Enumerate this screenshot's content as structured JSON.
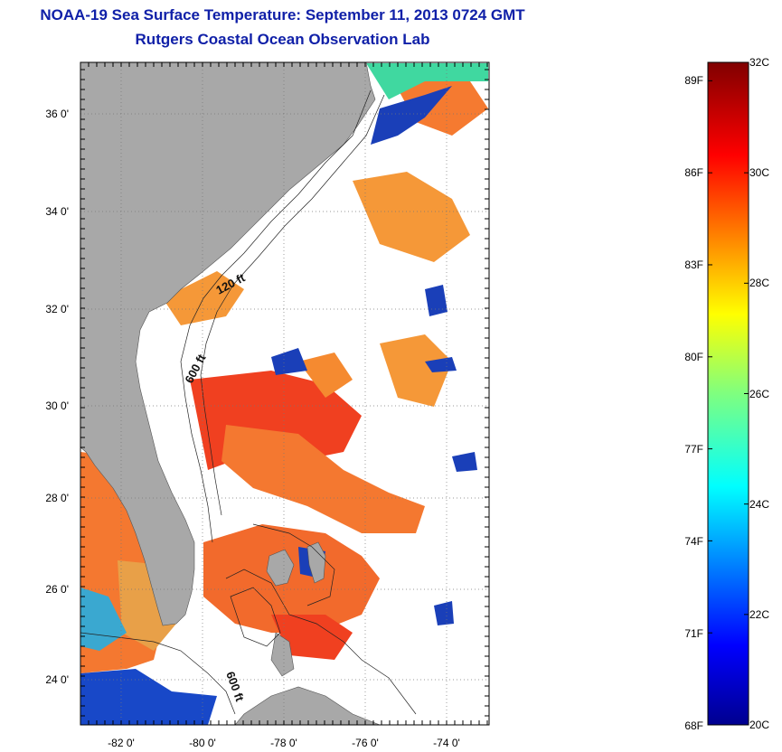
{
  "title": {
    "line1": "NOAA-19 Sea Surface Temperature:  September 11, 2013 0724 GMT",
    "line2": "Rutgers Coastal Ocean Observation Lab"
  },
  "map": {
    "lat_labels": [
      "36 0'",
      "34 0'",
      "32 0'",
      "30 0'",
      "28 0'",
      "26 0'",
      "24 0'"
    ],
    "lat_values": [
      36,
      34,
      32,
      30,
      28,
      26,
      24
    ],
    "lon_labels": [
      "-82 0'",
      "-80 0'",
      "-78 0'",
      "-76 0'",
      "-74 0'"
    ],
    "lon_values": [
      -82,
      -80,
      -78,
      -76,
      -74
    ],
    "lat_range": [
      23,
      37.1
    ],
    "lon_range": [
      -83,
      -72.9
    ],
    "contour_labels": [
      "120 ft",
      "600 ft",
      "600 ft"
    ],
    "colors": {
      "land": "#a8a8a8",
      "cloud": "#ffffff",
      "warm_core": "#f04020",
      "warm": "#f47830",
      "cool": "#1040c0"
    }
  },
  "colorbar": {
    "fahrenheit_labels": [
      "89F",
      "86F",
      "83F",
      "80F",
      "77F",
      "74F",
      "71F",
      "68F"
    ],
    "fahrenheit_values": [
      89,
      86,
      83,
      80,
      77,
      74,
      71,
      68
    ],
    "celsius_labels": [
      "32C",
      "30C",
      "28C",
      "26C",
      "24C",
      "22C",
      "20C"
    ],
    "celsius_values": [
      32,
      30,
      28,
      26,
      24,
      22,
      20
    ],
    "range_c": [
      20,
      32
    ]
  }
}
